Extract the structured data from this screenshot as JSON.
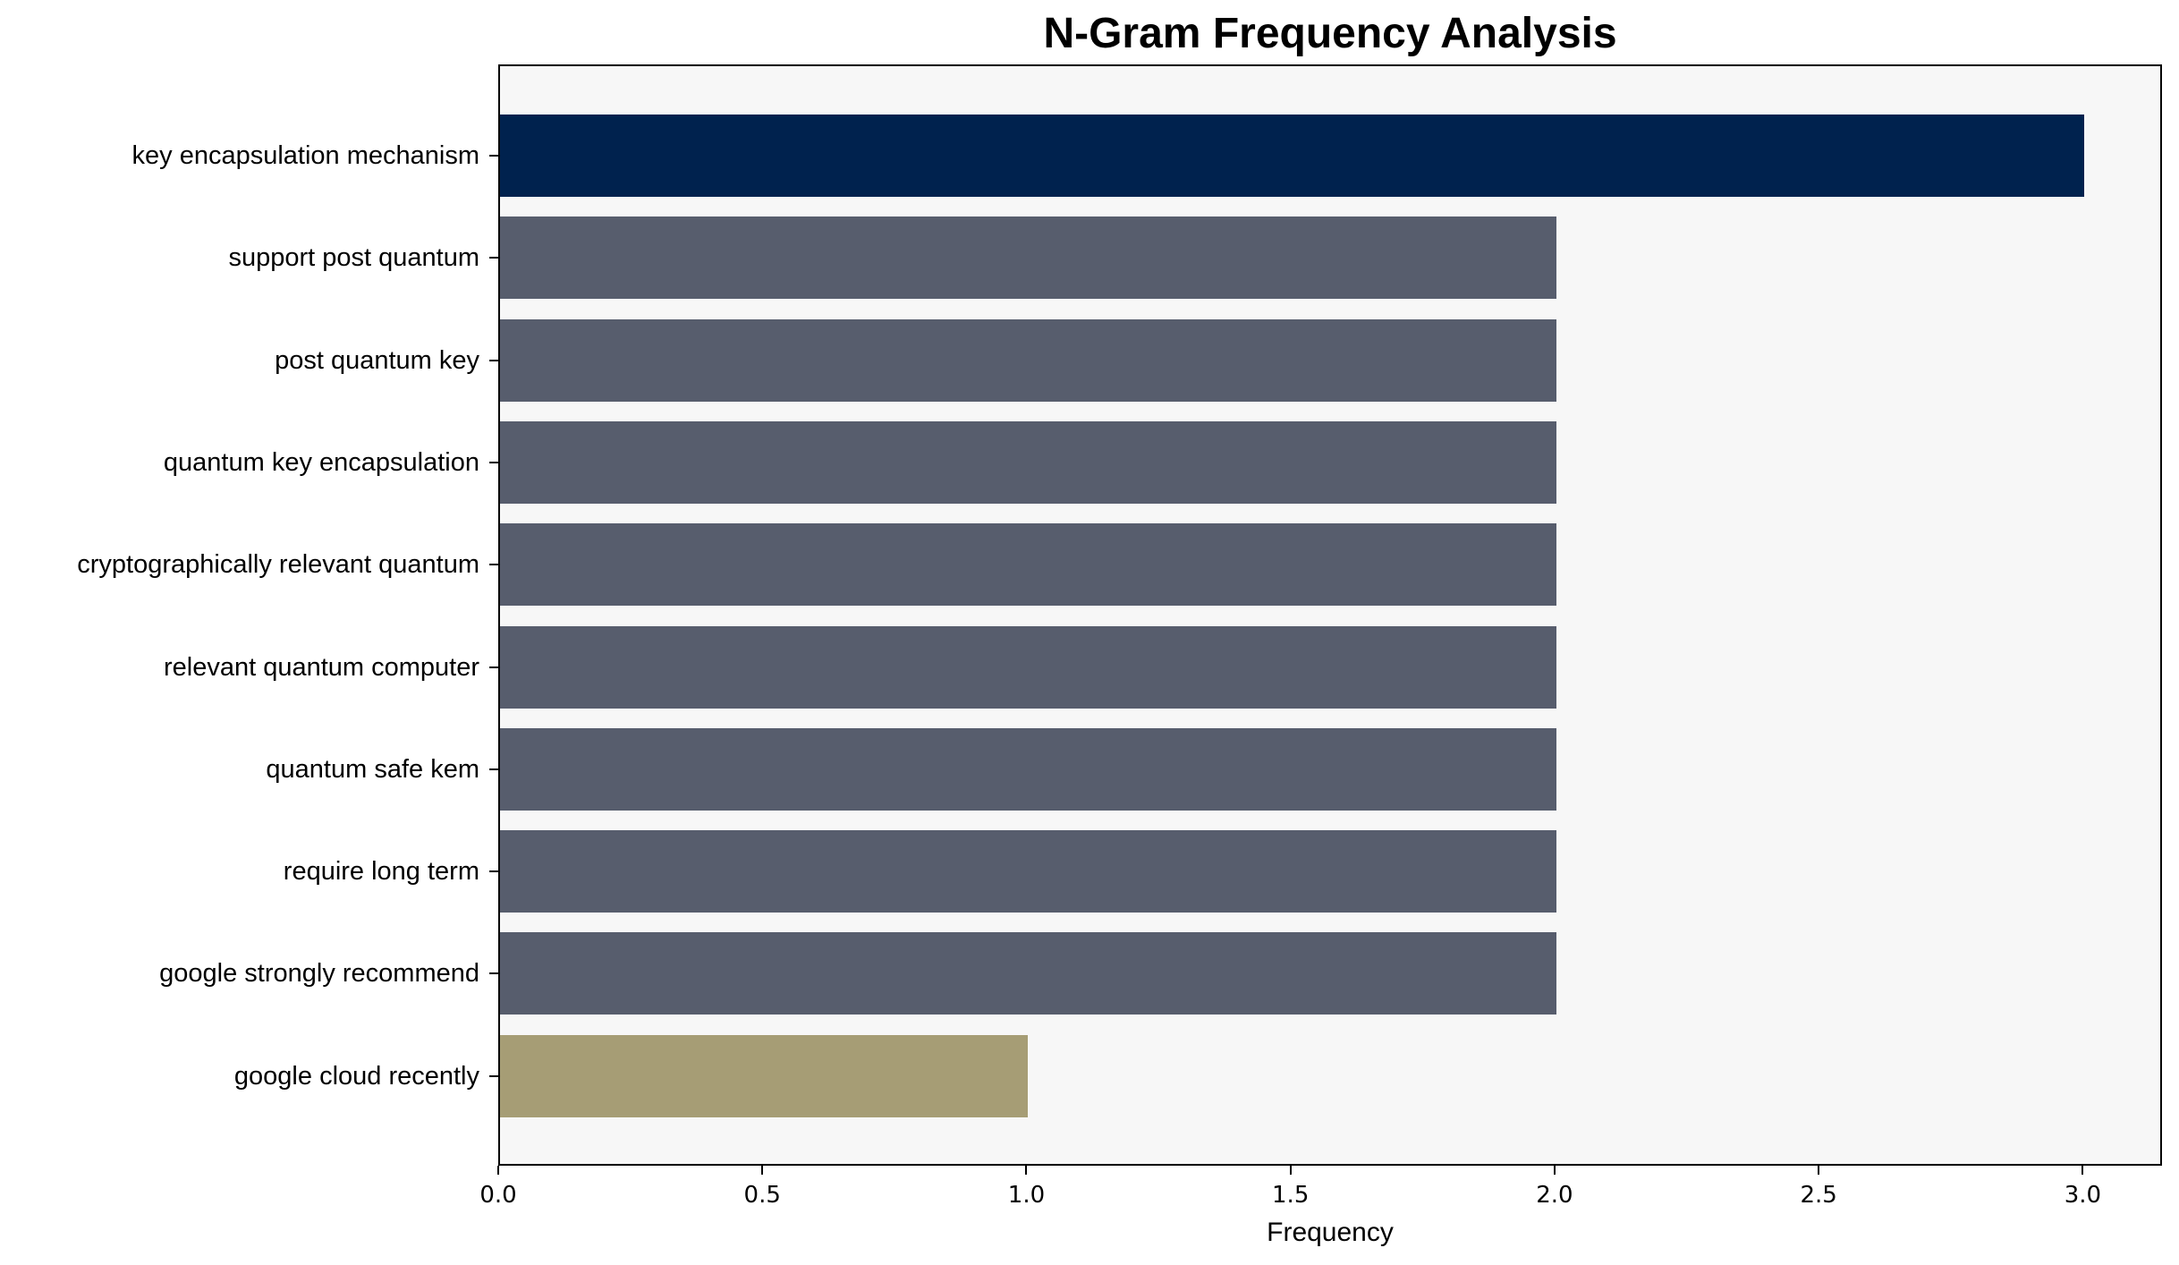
{
  "chart_data": {
    "type": "bar",
    "orientation": "horizontal",
    "title": "N-Gram Frequency Analysis",
    "xlabel": "Frequency",
    "ylabel": "",
    "categories": [
      "key encapsulation mechanism",
      "support post quantum",
      "post quantum key",
      "quantum key encapsulation",
      "cryptographically relevant quantum",
      "relevant quantum computer",
      "quantum safe kem",
      "require long term",
      "google strongly recommend",
      "google cloud recently"
    ],
    "values": [
      3,
      2,
      2,
      2,
      2,
      2,
      2,
      2,
      2,
      1
    ],
    "bar_colors": [
      "#00224e",
      "#575d6d",
      "#575d6d",
      "#575d6d",
      "#575d6d",
      "#575d6d",
      "#575d6d",
      "#575d6d",
      "#575d6d",
      "#a69d75"
    ],
    "xlim": [
      0,
      3.15
    ],
    "xticks": [
      "0.0",
      "0.5",
      "1.0",
      "1.5",
      "2.0",
      "2.5",
      "3.0"
    ],
    "grid": false,
    "legend": null,
    "background_color": "#f7f7f7"
  }
}
